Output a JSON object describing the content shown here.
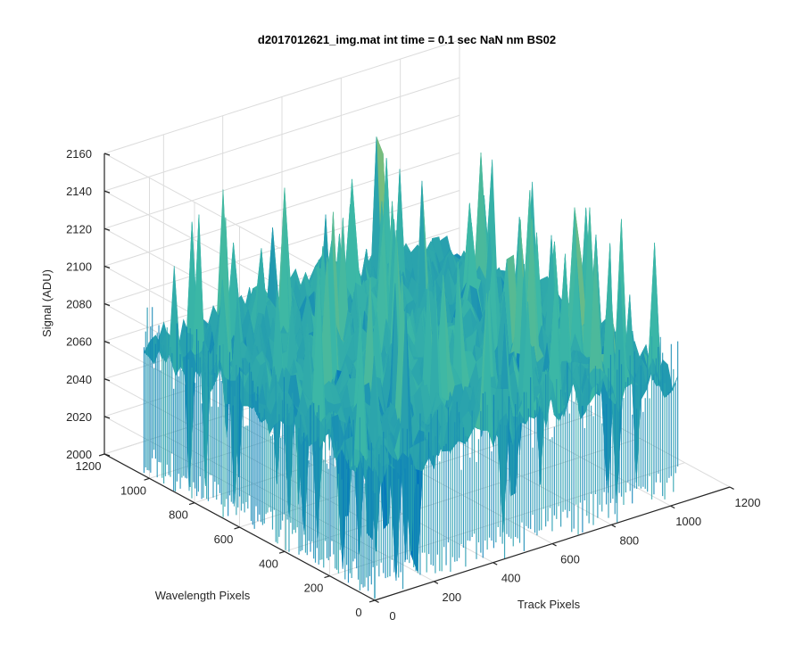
{
  "figure": {
    "title": "d2017012621_img.mat int time = 0.1 sec  NaN nm BS02"
  },
  "chart_data": {
    "type": "surface",
    "title": "d2017012621_img.mat int time = 0.1 sec  NaN nm BS02",
    "xlabel": "Track Pixels",
    "ylabel": "Wavelength Pixels",
    "zlabel": "Signal (ADU)",
    "xlim": [
      0,
      1200
    ],
    "ylim": [
      0,
      1200
    ],
    "zlim": [
      2000,
      2160
    ],
    "xticks": [
      "0",
      "200",
      "400",
      "600",
      "800",
      "1000",
      "1200"
    ],
    "yticks": [
      "0",
      "200",
      "400",
      "600",
      "800",
      "1000",
      "1200"
    ],
    "zticks": [
      "2000",
      "2020",
      "2040",
      "2060",
      "2080",
      "2100",
      "2120",
      "2140",
      "2160"
    ],
    "grid": true,
    "colormap": "parula",
    "colors": {
      "low": "#0072bd",
      "mid": "#3cb8a6",
      "high": "#eac630"
    },
    "surface_extent": {
      "x": [
        0,
        1024
      ],
      "y": [
        0,
        1024
      ]
    },
    "signal": {
      "min": 2000,
      "typical_min": 2030,
      "typical_max": 2110,
      "peak": 2150
    }
  }
}
